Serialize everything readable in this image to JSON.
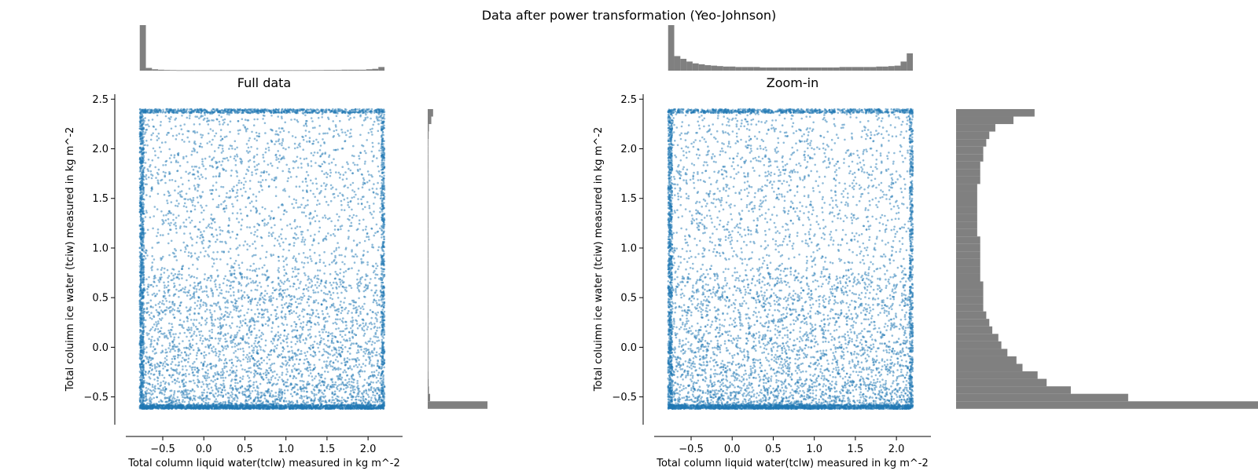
{
  "figure": {
    "suptitle": "Data after power transformation (Yeo-Johnson)"
  },
  "colors": {
    "scatter": "#1f77b4",
    "histogram": "#808080",
    "axis": "#000000"
  },
  "chart_data": [
    {
      "type": "scatter",
      "title": "Full data",
      "xlabel": "Total column liquid water(tclw) measured in kg m^-2",
      "ylabel": "Total coluimn ice water (tciw) measured in kg m^-2",
      "xlim": [
        -0.95,
        2.42
      ],
      "ylim": [
        -0.78,
        2.55
      ],
      "xticks": [
        -0.5,
        0.0,
        0.5,
        1.0,
        1.5,
        2.0
      ],
      "xtick_labels": [
        "−0.5",
        "0.0",
        "0.5",
        "1.0",
        "1.5",
        "2.0"
      ],
      "yticks": [
        -0.5,
        0.0,
        0.5,
        1.0,
        1.5,
        2.0,
        2.5
      ],
      "ytick_labels": [
        "−0.5",
        "0.0",
        "0.5",
        "1.0",
        "1.5",
        "2.0",
        "2.5"
      ],
      "x_range": [
        -0.78,
        2.2
      ],
      "y_range": [
        -0.62,
        2.4
      ],
      "point_alpha": 0.5,
      "grid": false,
      "marginal_x_histogram": [
        1.0,
        0.06,
        0.03,
        0.02,
        0.015,
        0.012,
        0.01,
        0.01,
        0.01,
        0.01,
        0.01,
        0.01,
        0.01,
        0.01,
        0.01,
        0.01,
        0.01,
        0.01,
        0.01,
        0.01,
        0.01,
        0.01,
        0.01,
        0.01,
        0.01,
        0.01,
        0.01,
        0.01,
        0.012,
        0.012,
        0.015,
        0.015,
        0.015,
        0.02,
        0.02,
        0.02,
        0.02,
        0.03,
        0.04,
        0.08
      ],
      "marginal_y_histogram": [
        1.0,
        0.04,
        0.02,
        0.015,
        0.012,
        0.01,
        0.01,
        0.01,
        0.01,
        0.01,
        0.01,
        0.01,
        0.01,
        0.01,
        0.01,
        0.01,
        0.01,
        0.01,
        0.01,
        0.01,
        0.01,
        0.01,
        0.01,
        0.01,
        0.01,
        0.01,
        0.01,
        0.01,
        0.01,
        0.01,
        0.01,
        0.01,
        0.01,
        0.01,
        0.01,
        0.01,
        0.015,
        0.02,
        0.06,
        0.09
      ]
    },
    {
      "type": "scatter",
      "title": "Zoom-in",
      "xlabel": "Total column liquid water(tclw) measured in kg m^-2",
      "ylabel": "Total coluimn ice water (tciw) measured in kg m^-2",
      "xlim": [
        -0.95,
        2.42
      ],
      "ylim": [
        -0.78,
        2.55
      ],
      "xticks": [
        -0.5,
        0.0,
        0.5,
        1.0,
        1.5,
        2.0
      ],
      "xtick_labels": [
        "−0.5",
        "0.0",
        "0.5",
        "1.0",
        "1.5",
        "2.0"
      ],
      "yticks": [
        -0.5,
        0.0,
        0.5,
        1.0,
        1.5,
        2.0,
        2.5
      ],
      "ytick_labels": [
        "−0.5",
        "0.0",
        "0.5",
        "1.0",
        "1.5",
        "2.0",
        "2.5"
      ],
      "x_range": [
        -0.78,
        2.2
      ],
      "y_range": [
        -0.62,
        2.4
      ],
      "point_alpha": 0.5,
      "grid": false,
      "marginal_x_histogram": [
        1.0,
        0.32,
        0.26,
        0.2,
        0.16,
        0.14,
        0.12,
        0.11,
        0.1,
        0.09,
        0.09,
        0.08,
        0.08,
        0.08,
        0.08,
        0.07,
        0.07,
        0.07,
        0.07,
        0.07,
        0.07,
        0.07,
        0.07,
        0.07,
        0.07,
        0.07,
        0.07,
        0.07,
        0.08,
        0.08,
        0.08,
        0.08,
        0.08,
        0.08,
        0.09,
        0.09,
        0.1,
        0.11,
        0.2,
        0.38
      ],
      "marginal_y_histogram": [
        1.0,
        0.57,
        0.38,
        0.3,
        0.27,
        0.22,
        0.2,
        0.17,
        0.15,
        0.14,
        0.12,
        0.11,
        0.1,
        0.09,
        0.09,
        0.09,
        0.09,
        0.08,
        0.08,
        0.08,
        0.08,
        0.08,
        0.08,
        0.07,
        0.07,
        0.07,
        0.07,
        0.07,
        0.07,
        0.07,
        0.08,
        0.08,
        0.08,
        0.09,
        0.09,
        0.1,
        0.11,
        0.13,
        0.19,
        0.26
      ]
    }
  ]
}
